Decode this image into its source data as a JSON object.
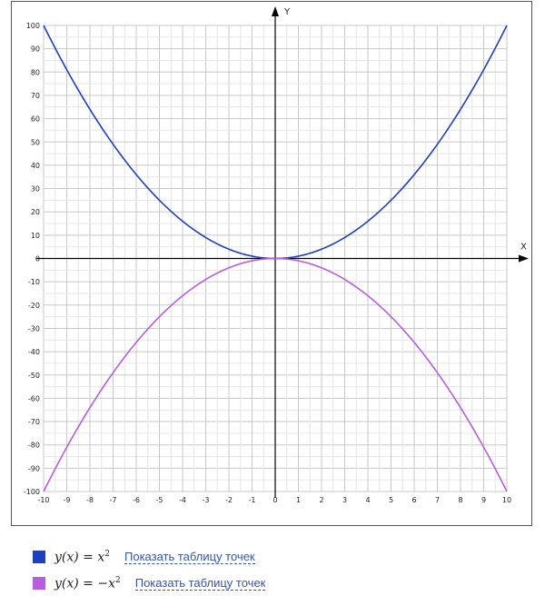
{
  "chart_data": {
    "type": "line",
    "xlabel": "X",
    "ylabel": "Y",
    "xlim": [
      -10,
      10
    ],
    "ylim": [
      -100,
      100
    ],
    "x_ticks": [
      -10,
      -9,
      -8,
      -7,
      -6,
      -5,
      -4,
      -3,
      -2,
      -1,
      0,
      1,
      2,
      3,
      4,
      5,
      6,
      7,
      8,
      9,
      10
    ],
    "y_ticks": [
      100,
      90,
      80,
      70,
      60,
      50,
      40,
      30,
      20,
      10,
      0,
      -10,
      -20,
      -30,
      -40,
      -50,
      -60,
      -70,
      -80,
      -90,
      -100
    ],
    "grid": true,
    "series": [
      {
        "name_lhs": "y(x) = x",
        "name_exp": "2",
        "color": "#1f3fbf",
        "x": [
          -10,
          -9,
          -8,
          -7,
          -6,
          -5,
          -4,
          -3,
          -2,
          -1,
          0,
          1,
          2,
          3,
          4,
          5,
          6,
          7,
          8,
          9,
          10
        ],
        "y": [
          100,
          81,
          64,
          49,
          36,
          25,
          16,
          9,
          4,
          1,
          0,
          1,
          4,
          9,
          16,
          25,
          36,
          49,
          64,
          81,
          100
        ]
      },
      {
        "name_lhs": "y(x) = −x",
        "name_exp": "2",
        "color": "#b65de0",
        "x": [
          -10,
          -9,
          -8,
          -7,
          -6,
          -5,
          -4,
          -3,
          -2,
          -1,
          0,
          1,
          2,
          3,
          4,
          5,
          6,
          7,
          8,
          9,
          10
        ],
        "y": [
          -100,
          -81,
          -64,
          -49,
          -36,
          -25,
          -16,
          -9,
          -4,
          -1,
          0,
          -1,
          -4,
          -9,
          -16,
          -25,
          -36,
          -49,
          -64,
          -81,
          -100
        ]
      }
    ]
  },
  "legend": {
    "items": [
      {
        "link_label": "Показать таблицу точек"
      },
      {
        "link_label": "Показать таблицу точек"
      }
    ]
  }
}
